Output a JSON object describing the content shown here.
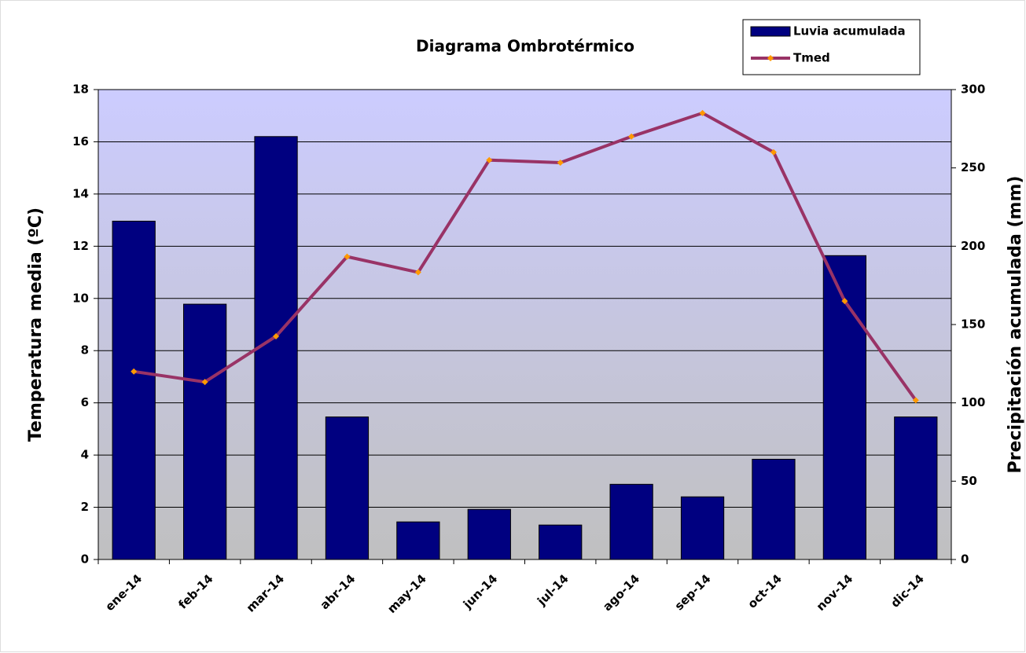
{
  "chart_data": {
    "type": "bar",
    "title": "Diagrama Ombrotérmico",
    "y_label": "Temperatura media (ºC)",
    "y2_label": "Precipitación acumulada (mm)",
    "categories": [
      "ene-14",
      "feb-14",
      "mar-14",
      "abr-14",
      "may-14",
      "jun-14",
      "jul-14",
      "ago-14",
      "sep-14",
      "oct-14",
      "nov-14",
      "dic-14"
    ],
    "series": [
      {
        "name": "Luvia acumulada",
        "type": "bar",
        "axis": "y2",
        "color": "#000080",
        "values": [
          216,
          163,
          270,
          91,
          24,
          32,
          22,
          48,
          40,
          64,
          194,
          91
        ]
      },
      {
        "name": "Tmed",
        "type": "line",
        "axis": "y",
        "color": "#993366",
        "marker_color": "#ff9900",
        "values": [
          7.2,
          6.8,
          8.55,
          11.6,
          11.0,
          15.3,
          15.2,
          16.2,
          17.1,
          15.6,
          9.9,
          6.1
        ]
      }
    ],
    "ylim": [
      0,
      18
    ],
    "yticks": [
      0,
      2,
      4,
      6,
      8,
      10,
      12,
      14,
      16,
      18
    ],
    "y2lim": [
      0,
      300
    ],
    "y2ticks": [
      0,
      50,
      100,
      150,
      200,
      250,
      300
    ],
    "grid": true,
    "legend": "top-right"
  }
}
